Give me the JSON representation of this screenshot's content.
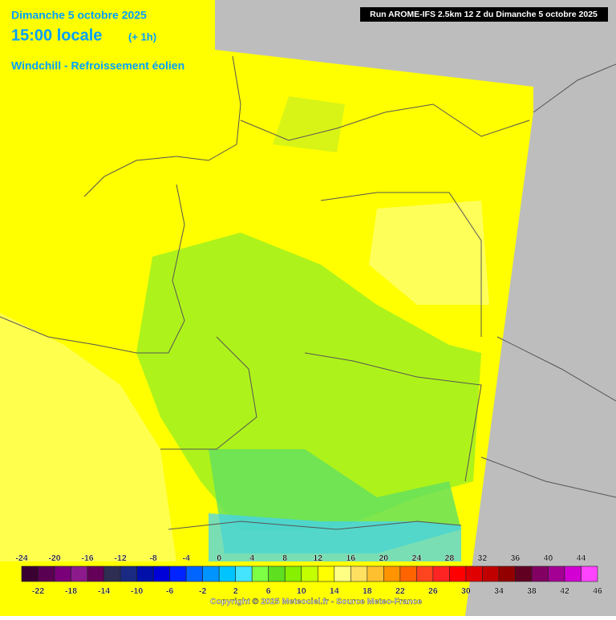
{
  "header": {
    "date": "Dimanche 5 octobre 2025",
    "time": "15:00 locale",
    "offset": "(+ 1h)",
    "parameter": "Windchill - Refroissement éolien",
    "run": "Run AROME-IFS 2.5km 12 Z du Dimanche 5 octobre 2025"
  },
  "legend": {
    "labels": [
      -24,
      -22,
      -20,
      -18,
      -16,
      -14,
      -12,
      -10,
      -8,
      -6,
      -4,
      -2,
      0,
      2,
      4,
      6,
      8,
      10,
      12,
      14,
      16,
      18,
      20,
      22,
      24,
      26,
      28,
      30,
      32,
      34,
      36,
      38,
      40,
      42,
      44,
      46
    ],
    "colors": [
      "#3a0032",
      "#5a0052",
      "#7a007a",
      "#8c1a8c",
      "#640058",
      "#2e2e52",
      "#1a2a82",
      "#0010a8",
      "#0000d8",
      "#0024ff",
      "#0064ff",
      "#0094ff",
      "#00c4ff",
      "#44e4ff",
      "#7cff44",
      "#5ee020",
      "#86f000",
      "#c4ff00",
      "#ffff00",
      "#ffff84",
      "#ffe060",
      "#ffc030",
      "#ff9400",
      "#ff6400",
      "#ff4420",
      "#ff2424",
      "#ff0000",
      "#e00000",
      "#c00000",
      "#920000",
      "#620022",
      "#820062",
      "#a40094",
      "#d200d2",
      "#ff44ff"
    ]
  },
  "footer": {
    "copyright": "Copyright © 2025 Meteociel.fr - Source Meteo-France"
  }
}
